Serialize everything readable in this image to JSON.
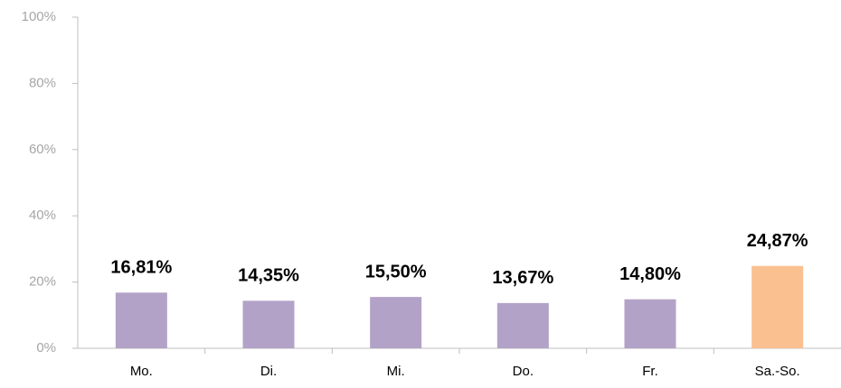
{
  "chart_data": {
    "type": "bar",
    "categories": [
      "Mo.",
      "Di.",
      "Mi.",
      "Do.",
      "Fr.",
      "Sa.-So."
    ],
    "values": [
      16.81,
      14.35,
      15.5,
      13.67,
      14.8,
      24.87
    ],
    "value_labels": [
      "16,81%",
      "14,35%",
      "15,50%",
      "13,67%",
      "14,80%",
      "24,87%"
    ],
    "colors": [
      "#b3a2c7",
      "#b3a2c7",
      "#b3a2c7",
      "#b3a2c7",
      "#b3a2c7",
      "#fac090"
    ],
    "ylim": [
      0,
      100
    ],
    "yticks": [
      {
        "value": 0,
        "label": "0%"
      },
      {
        "value": 20,
        "label": "20%"
      },
      {
        "value": 40,
        "label": "40%"
      },
      {
        "value": 60,
        "label": "60%"
      },
      {
        "value": 80,
        "label": "80%"
      },
      {
        "value": 100,
        "label": "100%"
      }
    ],
    "grid": false
  }
}
